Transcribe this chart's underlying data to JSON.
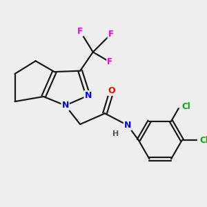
{
  "background_color": "#eeeeee",
  "bond_color": "#1a1a1a",
  "atom_colors": {
    "N": "#0000ff",
    "O": "#ff0000",
    "F": "#ff00cc",
    "Cl": "#00aa00",
    "H": "#555555"
  }
}
